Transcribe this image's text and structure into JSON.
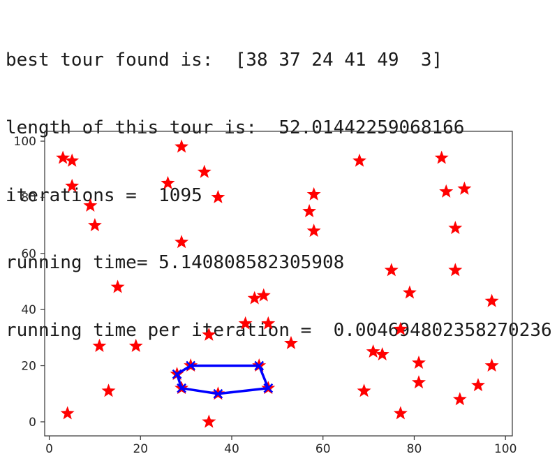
{
  "console": {
    "line1": "best tour found is:  [38 37 24 41 49  3]",
    "line2": "length of this tour is:  52.01442259068166",
    "line3": "iterations =  1095",
    "line4": "running time= 5.140808582305908",
    "line5": "running time per iteration =  0.004694802358270236"
  },
  "chart_data": {
    "type": "scatter",
    "xlim": [
      -1,
      101.5
    ],
    "ylim": [
      -5,
      103.5
    ],
    "xticks": [
      0,
      20,
      40,
      60,
      80,
      100
    ],
    "yticks": [
      0,
      20,
      40,
      60,
      80,
      100
    ],
    "grid": false,
    "colors": {
      "cities": "#ff0000",
      "tour": "#0000ff"
    },
    "cities": [
      [
        3,
        94
      ],
      [
        5,
        93
      ],
      [
        5,
        84
      ],
      [
        9,
        77
      ],
      [
        10,
        70
      ],
      [
        15,
        48
      ],
      [
        11,
        27
      ],
      [
        19,
        27
      ],
      [
        13,
        11
      ],
      [
        4,
        3
      ],
      [
        29,
        98
      ],
      [
        26,
        85
      ],
      [
        34,
        89
      ],
      [
        37,
        80
      ],
      [
        29,
        64
      ],
      [
        35,
        31
      ],
      [
        35,
        0
      ],
      [
        28,
        17
      ],
      [
        31,
        20
      ],
      [
        29,
        12
      ],
      [
        37,
        10
      ],
      [
        46,
        20
      ],
      [
        48,
        12
      ],
      [
        45,
        44
      ],
      [
        47,
        45
      ],
      [
        43,
        35
      ],
      [
        48,
        35
      ],
      [
        53,
        28
      ],
      [
        57,
        75
      ],
      [
        58,
        81
      ],
      [
        58,
        68
      ],
      [
        68,
        93
      ],
      [
        69,
        11
      ],
      [
        71,
        25
      ],
      [
        73,
        24
      ],
      [
        75,
        54
      ],
      [
        77,
        33
      ],
      [
        79,
        46
      ],
      [
        77,
        3
      ],
      [
        81,
        21
      ],
      [
        81,
        14
      ],
      [
        86,
        94
      ],
      [
        87,
        82
      ],
      [
        91,
        83
      ],
      [
        89,
        69
      ],
      [
        89,
        54
      ],
      [
        97,
        43
      ],
      [
        97,
        20
      ],
      [
        94,
        13
      ],
      [
        90,
        8
      ]
    ],
    "tour": [
      [
        28,
        17
      ],
      [
        31,
        20
      ],
      [
        46,
        20
      ],
      [
        48,
        12
      ],
      [
        37,
        10
      ],
      [
        29,
        12
      ],
      [
        28,
        17
      ]
    ]
  }
}
